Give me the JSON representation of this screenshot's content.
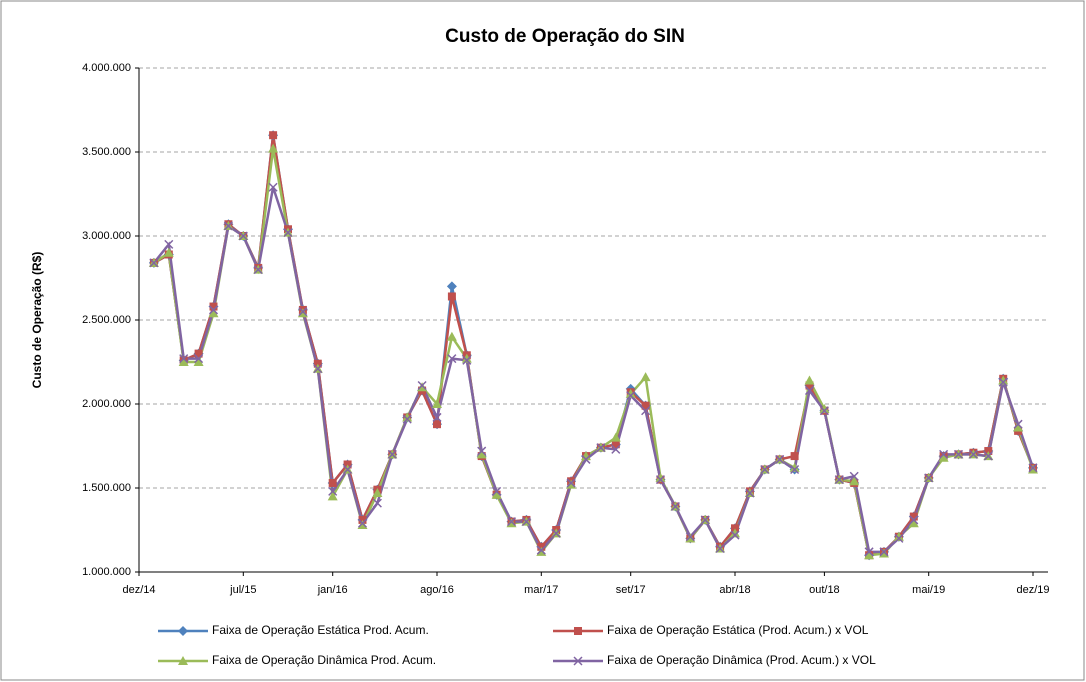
{
  "chart_data": {
    "type": "line",
    "title": "Custo de Operação do SIN",
    "y_label": "Custo de Operação (R$)",
    "categories": [
      "dez/14",
      null,
      null,
      null,
      null,
      null,
      null,
      "jul/15",
      null,
      null,
      null,
      null,
      null,
      "jan/16",
      null,
      null,
      null,
      null,
      null,
      null,
      "ago/16",
      null,
      null,
      null,
      null,
      null,
      null,
      "mar/17",
      null,
      null,
      null,
      null,
      null,
      "set/17",
      null,
      null,
      null,
      null,
      null,
      null,
      "abr/18",
      null,
      null,
      null,
      null,
      null,
      "out/18",
      null,
      null,
      null,
      null,
      null,
      null,
      "mai/19",
      null,
      null,
      null,
      null,
      null,
      null,
      "dez/19"
    ],
    "series": [
      {
        "name": "Faixa de Operação Estática Prod. Acum.",
        "color": "#4f81bd",
        "marker": "diamond",
        "values": [
          null,
          2840000,
          2890000,
          2260000,
          2300000,
          2580000,
          3070000,
          3000000,
          2810000,
          3600000,
          3040000,
          2560000,
          2240000,
          1530000,
          1640000,
          1310000,
          1490000,
          1700000,
          1920000,
          2080000,
          1880000,
          2700000,
          2290000,
          1690000,
          1460000,
          1300000,
          1310000,
          1150000,
          1250000,
          1540000,
          1690000,
          1740000,
          1760000,
          2090000,
          1990000,
          1550000,
          1390000,
          1200000,
          1310000,
          1150000,
          1260000,
          1480000,
          1610000,
          1670000,
          1610000,
          2110000,
          1960000,
          1550000,
          1530000,
          1100000,
          1120000,
          1210000,
          1330000,
          1560000,
          1690000,
          1700000,
          1710000,
          1720000,
          2150000,
          1840000,
          1620000
        ]
      },
      {
        "name": "Faixa de Operação Estática (Prod. Acum.) x VOL",
        "color": "#c0504d",
        "marker": "square",
        "values": [
          null,
          2840000,
          2890000,
          2260000,
          2300000,
          2580000,
          3070000,
          3000000,
          2810000,
          3600000,
          3040000,
          2560000,
          2240000,
          1530000,
          1640000,
          1310000,
          1490000,
          1700000,
          1920000,
          2080000,
          1880000,
          2640000,
          2290000,
          1690000,
          1460000,
          1300000,
          1310000,
          1150000,
          1250000,
          1540000,
          1690000,
          1740000,
          1760000,
          2070000,
          1990000,
          1550000,
          1390000,
          1200000,
          1310000,
          1150000,
          1260000,
          1480000,
          1610000,
          1670000,
          1690000,
          2110000,
          1960000,
          1550000,
          1530000,
          1100000,
          1120000,
          1210000,
          1330000,
          1560000,
          1690000,
          1700000,
          1710000,
          1720000,
          2150000,
          1840000,
          1620000
        ]
      },
      {
        "name": "Faixa de Operação Dinâmica Prod. Acum.",
        "color": "#9bbb59",
        "marker": "triangle",
        "values": [
          null,
          2840000,
          2900000,
          2250000,
          2250000,
          2540000,
          3060000,
          3000000,
          2800000,
          3520000,
          3020000,
          2540000,
          2210000,
          1450000,
          1610000,
          1280000,
          1470000,
          1700000,
          1920000,
          2100000,
          2000000,
          2400000,
          2270000,
          1700000,
          1460000,
          1290000,
          1300000,
          1120000,
          1230000,
          1520000,
          1690000,
          1740000,
          1800000,
          2060000,
          2160000,
          1560000,
          1390000,
          1200000,
          1310000,
          1140000,
          1230000,
          1470000,
          1610000,
          1670000,
          1620000,
          2140000,
          1970000,
          1550000,
          1540000,
          1100000,
          1110000,
          1210000,
          1290000,
          1560000,
          1680000,
          1700000,
          1700000,
          1690000,
          2140000,
          1860000,
          1610000
        ]
      },
      {
        "name": "Faixa de Operação Dinâmica (Prod. Acum.) x VOL",
        "color": "#8064a2",
        "marker": "x",
        "values": [
          null,
          2840000,
          2950000,
          2270000,
          2270000,
          2560000,
          3060000,
          3000000,
          2800000,
          3290000,
          3020000,
          2550000,
          2210000,
          1480000,
          1610000,
          1290000,
          1410000,
          1700000,
          1910000,
          2110000,
          1920000,
          2270000,
          2260000,
          1720000,
          1480000,
          1300000,
          1300000,
          1130000,
          1230000,
          1530000,
          1670000,
          1740000,
          1730000,
          2050000,
          1960000,
          1550000,
          1390000,
          1210000,
          1310000,
          1140000,
          1220000,
          1470000,
          1610000,
          1670000,
          1610000,
          2080000,
          1960000,
          1550000,
          1570000,
          1120000,
          1120000,
          1200000,
          1310000,
          1560000,
          1700000,
          1700000,
          1700000,
          1690000,
          2130000,
          1880000,
          1620000
        ]
      }
    ],
    "ylim": [
      1000000,
      4000000
    ],
    "yticks": [
      {
        "value": 1000000,
        "label": "1.000.000"
      },
      {
        "value": 1500000,
        "label": "1.500.000"
      },
      {
        "value": 2000000,
        "label": "2.000.000"
      },
      {
        "value": 2500000,
        "label": "2.500.000"
      },
      {
        "value": 3000000,
        "label": "3.000.000"
      },
      {
        "value": 3500000,
        "label": "3.500.000"
      },
      {
        "value": 4000000,
        "label": "4.000.000"
      }
    ],
    "grid": true,
    "legend": "bottom"
  }
}
